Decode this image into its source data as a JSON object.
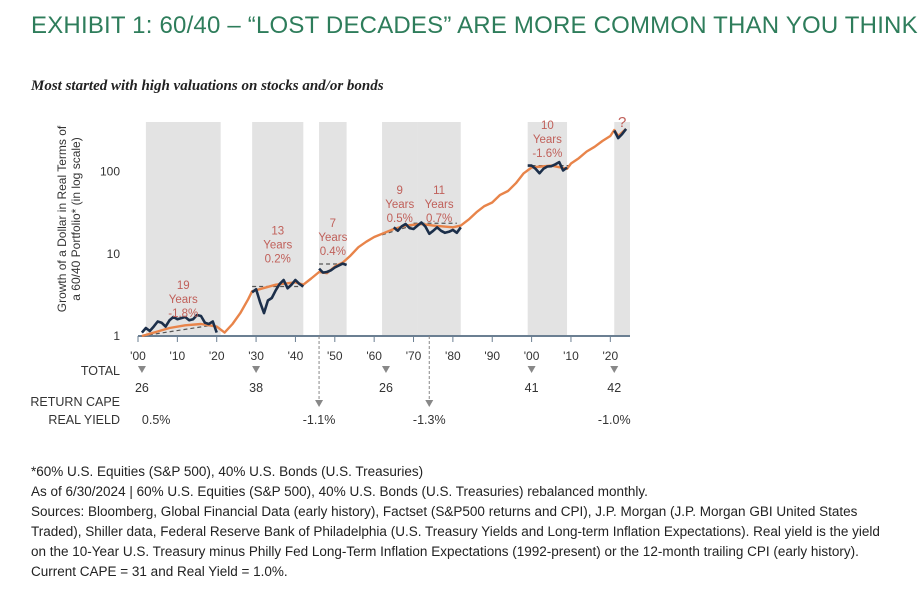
{
  "title": "EXHIBIT 1: 60/40 – “LOST DECADES” ARE MORE COMMON THAN YOU THINK",
  "subtitle": "Most started with high valuations on stocks and/or bonds",
  "colors": {
    "accent": "#2e7d5b",
    "line_orange": "#e8844a",
    "line_navy": "#1c2f4a",
    "band": "#e3e3e3",
    "annot": "#c0605a",
    "arrow": "#888888"
  },
  "chart_data": {
    "type": "line",
    "ylabel_lines": [
      "Growth of a Dollar in Real Terms of",
      "a 60/40 Portfolio* (in log scale)"
    ],
    "yscale": "log",
    "ylim": [
      1,
      400
    ],
    "yticks": [
      {
        "value": 1,
        "label": "1"
      },
      {
        "value": 10,
        "label": "10"
      },
      {
        "value": 100,
        "label": "100"
      }
    ],
    "xlim": [
      1900,
      2025
    ],
    "xticks": [
      {
        "value": 1900,
        "label": "'00"
      },
      {
        "value": 1910,
        "label": "'10"
      },
      {
        "value": 1920,
        "label": "'20"
      },
      {
        "value": 1930,
        "label": "'30"
      },
      {
        "value": 1940,
        "label": "'40"
      },
      {
        "value": 1950,
        "label": "'50"
      },
      {
        "value": 1960,
        "label": "'60"
      },
      {
        "value": 1970,
        "label": "'70"
      },
      {
        "value": 1980,
        "label": "'80"
      },
      {
        "value": 1990,
        "label": "'90"
      },
      {
        "value": 2000,
        "label": "'00"
      },
      {
        "value": 2010,
        "label": "'10"
      },
      {
        "value": 2020,
        "label": "'20"
      }
    ],
    "series": [
      {
        "color": "#e8844a",
        "points": [
          [
            1901,
            1.0
          ],
          [
            1904,
            1.1
          ],
          [
            1908,
            1.25
          ],
          [
            1912,
            1.35
          ],
          [
            1916,
            1.4
          ],
          [
            1920,
            1.3
          ],
          [
            1922,
            1.1
          ],
          [
            1924,
            1.4
          ],
          [
            1926,
            1.9
          ],
          [
            1928,
            2.8
          ],
          [
            1929,
            3.5
          ],
          [
            1930,
            3.6
          ],
          [
            1935,
            4.2
          ],
          [
            1940,
            4.5
          ],
          [
            1942,
            4.2
          ],
          [
            1944,
            5.0
          ],
          [
            1946,
            6.0
          ],
          [
            1948,
            5.8
          ],
          [
            1950,
            7.0
          ],
          [
            1952,
            7.8
          ],
          [
            1954,
            9.5
          ],
          [
            1956,
            12.0
          ],
          [
            1958,
            14.0
          ],
          [
            1960,
            16.0
          ],
          [
            1962,
            17.5
          ],
          [
            1965,
            20.0
          ],
          [
            1968,
            22.0
          ],
          [
            1970,
            22.5
          ],
          [
            1972,
            23.0
          ],
          [
            1975,
            22.0
          ],
          [
            1980,
            21.0
          ],
          [
            1982,
            22.0
          ],
          [
            1984,
            26.0
          ],
          [
            1986,
            32.0
          ],
          [
            1988,
            38.0
          ],
          [
            1990,
            42.0
          ],
          [
            1992,
            52.0
          ],
          [
            1994,
            58.0
          ],
          [
            1996,
            72.0
          ],
          [
            1998,
            95.0
          ],
          [
            2000,
            112.0
          ],
          [
            2005,
            118.0
          ],
          [
            2009,
            108.0
          ],
          [
            2010,
            125.0
          ],
          [
            2012,
            145.0
          ],
          [
            2014,
            175.0
          ],
          [
            2016,
            200.0
          ],
          [
            2018,
            235.0
          ],
          [
            2020,
            270.0
          ],
          [
            2021,
            320.0
          ],
          [
            2022,
            270.0
          ],
          [
            2024,
            330.0
          ]
        ]
      },
      {
        "color": "#1c2f4a",
        "points": [
          [
            1901,
            1.1
          ],
          [
            1902,
            1.25
          ],
          [
            1903,
            1.15
          ],
          [
            1904,
            1.3
          ],
          [
            1905,
            1.5
          ],
          [
            1906,
            1.45
          ],
          [
            1907,
            1.3
          ],
          [
            1908,
            1.55
          ],
          [
            1909,
            1.7
          ],
          [
            1910,
            1.6
          ],
          [
            1911,
            1.65
          ],
          [
            1912,
            1.7
          ],
          [
            1913,
            1.55
          ],
          [
            1914,
            1.6
          ],
          [
            1915,
            1.8
          ],
          [
            1916,
            1.75
          ],
          [
            1917,
            1.45
          ],
          [
            1918,
            1.4
          ],
          [
            1919,
            1.5
          ],
          [
            1920,
            1.1
          ]
        ]
      },
      {
        "color": "#1c2f4a",
        "points": [
          [
            1929,
            3.4
          ],
          [
            1930,
            3.7
          ],
          [
            1931,
            2.6
          ],
          [
            1932,
            1.9
          ],
          [
            1933,
            2.7
          ],
          [
            1934,
            2.9
          ],
          [
            1935,
            3.6
          ],
          [
            1936,
            4.3
          ],
          [
            1937,
            4.8
          ],
          [
            1938,
            3.8
          ],
          [
            1939,
            4.2
          ],
          [
            1940,
            4.8
          ],
          [
            1941,
            4.3
          ],
          [
            1942,
            4.0
          ]
        ]
      },
      {
        "color": "#1c2f4a",
        "points": [
          [
            1946,
            6.6
          ],
          [
            1947,
            5.9
          ],
          [
            1948,
            6.0
          ],
          [
            1949,
            6.3
          ],
          [
            1950,
            6.8
          ],
          [
            1952,
            7.6
          ],
          [
            1953,
            7.3
          ]
        ]
      },
      {
        "color": "#1c2f4a",
        "points": [
          [
            1965,
            21.0
          ],
          [
            1966,
            19.0
          ],
          [
            1967,
            21.5
          ],
          [
            1968,
            23.0
          ],
          [
            1969,
            20.5
          ],
          [
            1970,
            20.0
          ],
          [
            1971,
            22.0
          ],
          [
            1972,
            24.0
          ],
          [
            1973,
            21.5
          ],
          [
            1974,
            17.5
          ],
          [
            1975,
            19.0
          ],
          [
            1976,
            21.0
          ],
          [
            1977,
            19.0
          ],
          [
            1978,
            18.0
          ],
          [
            1979,
            18.5
          ],
          [
            1980,
            19.5
          ],
          [
            1981,
            18.0
          ],
          [
            1982,
            21.0
          ]
        ]
      },
      {
        "color": "#1c2f4a",
        "points": [
          [
            1999,
            118.0
          ],
          [
            2000,
            118.0
          ],
          [
            2001,
            108.0
          ],
          [
            2002,
            95.0
          ],
          [
            2003,
            108.0
          ],
          [
            2004,
            115.0
          ],
          [
            2005,
            116.0
          ],
          [
            2006,
            122.0
          ],
          [
            2007,
            130.0
          ],
          [
            2008,
            103.0
          ],
          [
            2009,
            112.0
          ]
        ]
      },
      {
        "color": "#1c2f4a",
        "points": [
          [
            2021,
            315.0
          ],
          [
            2022,
            255.0
          ],
          [
            2023,
            285.0
          ],
          [
            2024,
            330.0
          ]
        ]
      }
    ],
    "dashed_segments": [
      {
        "from": [
          1901,
          1.0
        ],
        "to": [
          1920,
          1.38
        ]
      },
      {
        "from": [
          1929,
          4.0
        ],
        "to": [
          1942,
          4.0
        ]
      },
      {
        "from": [
          1946,
          7.5
        ],
        "to": [
          1953,
          7.5
        ]
      },
      {
        "from": [
          1962,
          17.0
        ],
        "to": [
          1971,
          23.0
        ]
      },
      {
        "from": [
          1970,
          23.5
        ],
        "to": [
          1981,
          23.5
        ]
      },
      {
        "from": [
          2000,
          118.0
        ],
        "to": [
          2010,
          118.0
        ]
      }
    ],
    "bands": [
      {
        "start": 1902,
        "end": 1921,
        "annotation": [
          "19",
          "Years",
          "-1.8%"
        ],
        "label_y": 2.8
      },
      {
        "start": 1929,
        "end": 1942,
        "annotation": [
          "13",
          "Years",
          "0.2%"
        ],
        "label_y": 13.0
      },
      {
        "start": 1946,
        "end": 1953,
        "annotation": [
          "7",
          "Years",
          "0.4%"
        ],
        "label_y": 16.0
      },
      {
        "start": 1962,
        "end": 1971,
        "annotation": [
          "9",
          "Years",
          "0.5%"
        ],
        "label_y": 40.0
      },
      {
        "start": 1971,
        "end": 1982,
        "annotation": [
          "11",
          "Years",
          "0.7%"
        ],
        "label_y": 40.0
      },
      {
        "start": 1999,
        "end": 2009,
        "annotation": [
          "10",
          "Years",
          "-1.6%"
        ],
        "label_y": 250.0
      },
      {
        "start": 2021,
        "end": 2025,
        "annotation": [
          "?"
        ],
        "label_y": 390.0
      }
    ],
    "cape_label_lines": [
      "TOTAL",
      "RETURN CAPE"
    ],
    "cape_markers": [
      {
        "year": 1901,
        "value": "26"
      },
      {
        "year": 1930,
        "value": "38"
      },
      {
        "year": 1963,
        "value": "26"
      },
      {
        "year": 2000,
        "value": "41"
      },
      {
        "year": 2021,
        "value": "42"
      }
    ],
    "real_yield_label": "REAL YIELD",
    "real_yield_markers": [
      {
        "year": 1901,
        "value": "0.5%",
        "arrow": false
      },
      {
        "year": 1946,
        "value": "-1.1%",
        "arrow": true
      },
      {
        "year": 1974,
        "value": "-1.3%",
        "arrow": true
      },
      {
        "year": 2021,
        "value": "-1.0%",
        "arrow": false
      }
    ]
  },
  "footnotes": [
    "*60% U.S. Equities (S&P 500), 40% U.S. Bonds (U.S. Treasuries)",
    "As of 6/30/2024 | 60% U.S. Equities (S&P 500), 40% U.S. Bonds (U.S. Treasuries) rebalanced monthly.",
    "Sources: Bloomberg, Global Financial Data (early history), Factset (S&P500 returns and CPI), J.P. Morgan (J.P. Morgan GBI United States Traded), Shiller data, Federal Reserve Bank of Philadelphia (U.S. Treasury Yields and Long-term Inflation Expectations). Real yield is the yield on the 10-Year U.S. Treasury minus Philly Fed Long-Term Inflation Expectations (1992-present) or the 12-month trailing CPI (early history). Current CAPE = 31 and Real Yield = 1.0%."
  ]
}
